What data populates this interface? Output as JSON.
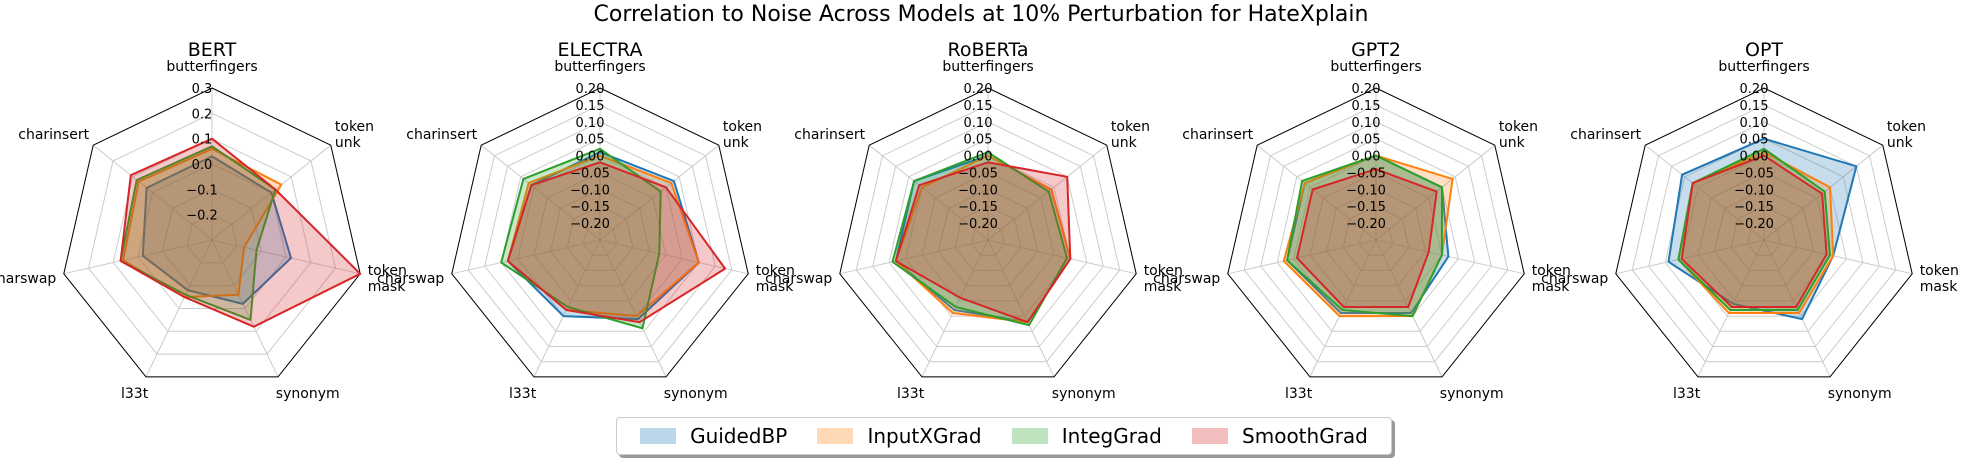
{
  "figure": {
    "title": "Correlation to Noise Across Models at 10% Perturbation for HateXplain",
    "colors": {
      "GuidedBP": "#1f77b4",
      "InputXGrad": "#ff7f0e",
      "IntegGrad": "#2ca02c",
      "SmoothGrad": "#d62728"
    },
    "legend": {
      "labels": [
        "GuidedBP",
        "InputXGrad",
        "IntegGrad",
        "SmoothGrad"
      ]
    }
  },
  "chart_data": [
    {
      "type": "radar",
      "title": "BERT",
      "axes": [
        "butterfingers",
        "token\nunk",
        "token\nmask",
        "synonym",
        "l33t",
        "charswap",
        "charinsert"
      ],
      "rlim": [
        -0.3,
        0.3
      ],
      "rticks": [
        "-0.2",
        "-0.1",
        "0.0",
        "0.1",
        "0.2",
        "0.3"
      ],
      "series": [
        {
          "name": "GuidedBP",
          "values": [
            0.03,
            0.0,
            0.02,
            -0.02,
            -0.08,
            -0.02,
            0.03
          ]
        },
        {
          "name": "InputXGrad",
          "values": [
            0.06,
            0.05,
            -0.17,
            -0.06,
            -0.05,
            0.06,
            0.07
          ]
        },
        {
          "name": "IntegGrad",
          "values": [
            0.07,
            0.02,
            -0.12,
            0.05,
            -0.06,
            0.07,
            0.08
          ]
        },
        {
          "name": "SmoothGrad",
          "values": [
            0.1,
            0.02,
            0.3,
            0.08,
            -0.05,
            0.07,
            0.11
          ]
        }
      ]
    },
    {
      "type": "radar",
      "title": "ELECTRA",
      "axes": [
        "butterfingers",
        "token\nunk",
        "token\nmask",
        "synonym",
        "l33t",
        "charswap",
        "charinsert"
      ],
      "rlim": [
        -0.25,
        0.2
      ],
      "rticks": [
        "-0.20",
        "-0.15",
        "-0.10",
        "-0.05",
        "0.00",
        "0.05",
        "0.10",
        "0.15",
        "0.20"
      ],
      "series": [
        {
          "name": "GuidedBP",
          "values": [
            0.01,
            0.03,
            0.05,
            0.01,
            0.0,
            0.03,
            0.01
          ]
        },
        {
          "name": "InputXGrad",
          "values": [
            0.0,
            0.02,
            0.05,
            0.0,
            -0.02,
            0.03,
            0.02
          ]
        },
        {
          "name": "IntegGrad",
          "values": [
            0.02,
            -0.02,
            -0.07,
            0.04,
            -0.03,
            0.05,
            0.04
          ]
        },
        {
          "name": "SmoothGrad",
          "values": [
            -0.02,
            0.0,
            0.13,
            0.02,
            -0.02,
            0.03,
            0.01
          ]
        }
      ]
    },
    {
      "type": "radar",
      "title": "RoBERTa",
      "axes": [
        "butterfingers",
        "token\nunk",
        "token\nmask",
        "synonym",
        "l33t",
        "charswap",
        "charinsert"
      ],
      "rlim": [
        -0.25,
        0.2
      ],
      "rticks": [
        "-0.20",
        "-0.15",
        "-0.10",
        "-0.05",
        "0.00",
        "0.05",
        "0.10",
        "0.15",
        "0.20"
      ],
      "series": [
        {
          "name": "GuidedBP",
          "values": [
            0.0,
            -0.01,
            0.0,
            0.02,
            -0.02,
            0.03,
            0.03
          ]
        },
        {
          "name": "InputXGrad",
          "values": [
            0.0,
            -0.01,
            0.0,
            0.02,
            -0.01,
            0.03,
            0.0
          ]
        },
        {
          "name": "IntegGrad",
          "values": [
            0.01,
            -0.02,
            -0.01,
            0.03,
            -0.03,
            0.04,
            0.03
          ]
        },
        {
          "name": "SmoothGrad",
          "values": [
            -0.02,
            0.05,
            0.0,
            0.02,
            -0.06,
            0.03,
            0.01
          ]
        }
      ]
    },
    {
      "type": "radar",
      "title": "GPT2",
      "axes": [
        "butterfingers",
        "token\nunk",
        "token\nmask",
        "synonym",
        "l33t",
        "charswap",
        "charinsert"
      ],
      "rlim": [
        -0.25,
        0.2
      ],
      "rticks": [
        "-0.20",
        "-0.15",
        "-0.10",
        "-0.05",
        "0.00",
        "0.05",
        "0.10",
        "0.15",
        "0.20"
      ],
      "series": [
        {
          "name": "GuidedBP",
          "values": [
            0.0,
            0.0,
            -0.03,
            -0.01,
            -0.01,
            0.02,
            0.02
          ]
        },
        {
          "name": "InputXGrad",
          "values": [
            0.0,
            0.04,
            -0.05,
            0.0,
            0.0,
            0.03,
            0.02
          ]
        },
        {
          "name": "IntegGrad",
          "values": [
            0.0,
            0.0,
            -0.05,
            0.0,
            -0.02,
            0.02,
            0.03
          ]
        },
        {
          "name": "SmoothGrad",
          "values": [
            -0.04,
            -0.02,
            -0.09,
            -0.03,
            -0.03,
            -0.01,
            -0.01
          ]
        }
      ]
    },
    {
      "type": "radar",
      "title": "OPT",
      "axes": [
        "butterfingers",
        "token\nunk",
        "token\nmask",
        "synonym",
        "l33t",
        "charswap",
        "charinsert"
      ],
      "rlim": [
        -0.25,
        0.2
      ],
      "rticks": [
        "-0.20",
        "-0.15",
        "-0.10",
        "-0.05",
        "0.00",
        "0.05",
        "0.10",
        "0.15",
        "0.20"
      ],
      "series": [
        {
          "name": "GuidedBP",
          "values": [
            0.05,
            0.1,
            -0.04,
            0.01,
            -0.04,
            0.04,
            0.06
          ]
        },
        {
          "name": "InputXGrad",
          "values": [
            0.01,
            0.0,
            -0.04,
            -0.01,
            -0.01,
            0.01,
            0.02
          ]
        },
        {
          "name": "IntegGrad",
          "values": [
            0.02,
            -0.02,
            -0.05,
            -0.02,
            -0.02,
            0.01,
            0.02
          ]
        },
        {
          "name": "SmoothGrad",
          "values": [
            0.0,
            -0.03,
            -0.06,
            -0.03,
            -0.03,
            0.0,
            0.02
          ]
        }
      ]
    }
  ]
}
